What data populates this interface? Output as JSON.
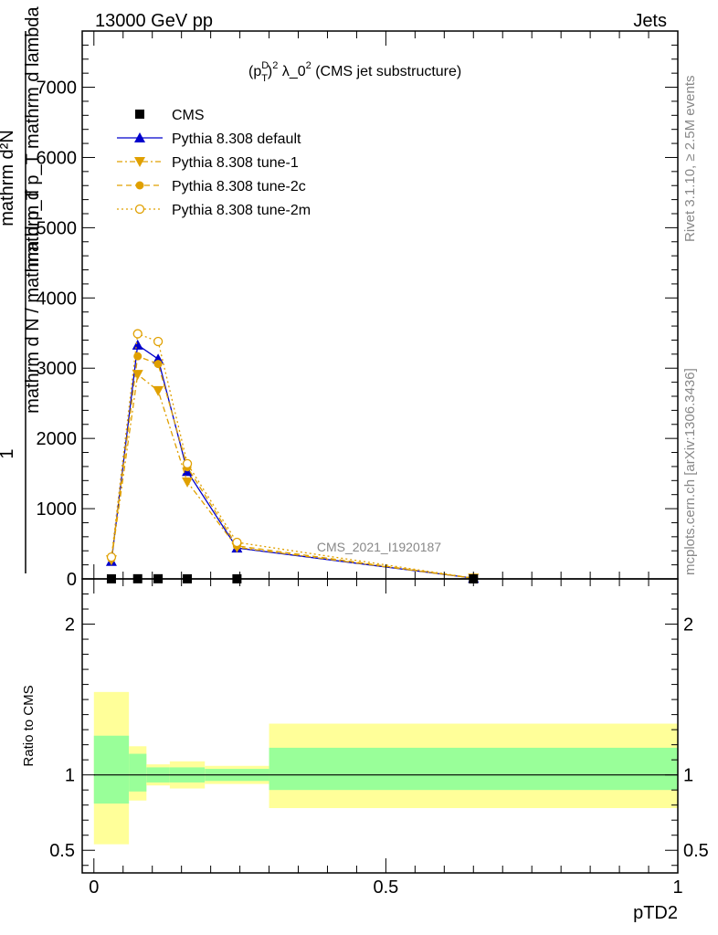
{
  "header": {
    "left": "13000 GeV pp",
    "right": "Jets"
  },
  "side_text": {
    "rivet": "Rivet 3.1.10, ≥ 2.5M events",
    "mcplots": "mcplots.cern.ch [arXiv:1306.3436]"
  },
  "plot_title": {
    "prefix": "(p",
    "sup1": "D",
    "sub1": "T",
    "sup2": "2",
    "mid": " λ_0",
    "sup3": "2",
    "suffix": " (CMS jet substructure)"
  },
  "watermark": "CMS_2021_I1920187",
  "ylabel": {
    "num": "mathrm d²N",
    "den": "mathrm d p_T mathrm d lambda",
    "line1": "1",
    "line2": "mathrm d N / mathrm d p_T"
  },
  "ratio_ylabel": "Ratio to CMS",
  "xlabel": "pTD2",
  "colors": {
    "default": "#0000cc",
    "tune": "#e0a000",
    "band_inner": "#99ff99",
    "band_outer": "#ffff99"
  },
  "legend": [
    {
      "name": "CMS",
      "marker": "square"
    },
    {
      "name": "Pythia 8.308 default",
      "marker": "triangle-up"
    },
    {
      "name": "Pythia 8.308 tune-1",
      "marker": "triangle-down"
    },
    {
      "name": "Pythia 8.308 tune-2c",
      "marker": "circle-filled"
    },
    {
      "name": "Pythia 8.308 tune-2m",
      "marker": "circle-open"
    }
  ],
  "chart_data": [
    {
      "type": "line",
      "xlim": [
        -0.02,
        1.0
      ],
      "ylim": [
        0,
        7800
      ],
      "yticks": [
        {
          "v": 0,
          "label": "0"
        },
        {
          "v": 1000,
          "label": "1000"
        },
        {
          "v": 2000,
          "label": "2000"
        },
        {
          "v": 3000,
          "label": "3000"
        },
        {
          "v": 4000,
          "label": "4000"
        },
        {
          "v": 5000,
          "label": "5000"
        },
        {
          "v": 6000,
          "label": "6000"
        },
        {
          "v": 7000,
          "label": "7000"
        }
      ],
      "x": [
        0.03,
        0.075,
        0.11,
        0.16,
        0.245,
        0.65
      ],
      "series": [
        {
          "name": "CMS",
          "values": [
            1,
            2,
            2,
            1,
            1,
            0
          ]
        },
        {
          "name": "Pythia 8.308 default",
          "values": [
            250,
            3330,
            3130,
            1530,
            440,
            10
          ]
        },
        {
          "name": "Pythia 8.308 tune-1",
          "values": [
            270,
            2910,
            2680,
            1380,
            450,
            10
          ]
        },
        {
          "name": "Pythia 8.308 tune-2c",
          "values": [
            290,
            3170,
            3060,
            1590,
            470,
            10
          ]
        },
        {
          "name": "Pythia 8.308 tune-2m",
          "values": [
            310,
            3490,
            3380,
            1640,
            520,
            10
          ]
        }
      ]
    },
    {
      "type": "area",
      "xlim": [
        -0.02,
        1.0
      ],
      "ylim": [
        0.35,
        2.3
      ],
      "yticks": [
        {
          "v": 0.5,
          "label": "0.5"
        },
        {
          "v": 1,
          "label": "1"
        },
        {
          "v": 2,
          "label": "2"
        }
      ],
      "xticks": [
        {
          "v": 0,
          "label": "0"
        },
        {
          "v": 0.5,
          "label": "0.5"
        },
        {
          "v": 1,
          "label": "1"
        }
      ],
      "bins": [
        {
          "lo": 0.0,
          "hi": 0.06,
          "outer": [
            0.54,
            1.55
          ],
          "inner": [
            0.81,
            1.26
          ]
        },
        {
          "lo": 0.06,
          "hi": 0.09,
          "outer": [
            0.83,
            1.19
          ],
          "inner": [
            0.89,
            1.14
          ]
        },
        {
          "lo": 0.09,
          "hi": 0.13,
          "outer": [
            0.93,
            1.07
          ],
          "inner": [
            0.95,
            1.05
          ]
        },
        {
          "lo": 0.13,
          "hi": 0.19,
          "outer": [
            0.91,
            1.09
          ],
          "inner": [
            0.95,
            1.05
          ]
        },
        {
          "lo": 0.19,
          "hi": 0.3,
          "outer": [
            0.94,
            1.06
          ],
          "inner": [
            0.96,
            1.04
          ]
        },
        {
          "lo": 0.3,
          "hi": 1.0,
          "outer": [
            0.78,
            1.34
          ],
          "inner": [
            0.9,
            1.18
          ]
        }
      ],
      "reference": 1
    }
  ]
}
